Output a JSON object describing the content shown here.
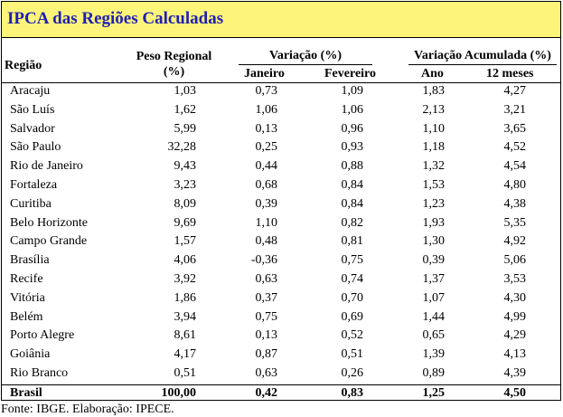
{
  "title": "IPCA das Regiões Calculadas",
  "headers": {
    "regiao": "Região",
    "peso_line1": "Peso Regional",
    "peso_line2": "(%)",
    "variacao": "Variação (%)",
    "janeiro": "Janeiro",
    "fevereiro": "Fevereiro",
    "variacao_acumulada": "Variação Acumulada (%)",
    "ano": "Ano",
    "meses12": "12 meses"
  },
  "rows": [
    {
      "regiao": "Aracaju",
      "peso": "1,03",
      "janeiro": "0,73",
      "fevereiro": "1,09",
      "ano": "1,83",
      "meses12": "4,27"
    },
    {
      "regiao": "São Luís",
      "peso": "1,62",
      "janeiro": "1,06",
      "fevereiro": "1,06",
      "ano": "2,13",
      "meses12": "3,21"
    },
    {
      "regiao": "Salvador",
      "peso": "5,99",
      "janeiro": "0,13",
      "fevereiro": "0,96",
      "ano": "1,10",
      "meses12": "3,65"
    },
    {
      "regiao": "São Paulo",
      "peso": "32,28",
      "janeiro": "0,25",
      "fevereiro": "0,93",
      "ano": "1,18",
      "meses12": "4,52"
    },
    {
      "regiao": "Rio de Janeiro",
      "peso": "9,43",
      "janeiro": "0,44",
      "fevereiro": "0,88",
      "ano": "1,32",
      "meses12": "4,54"
    },
    {
      "regiao": "Fortaleza",
      "peso": "3,23",
      "janeiro": "0,68",
      "fevereiro": "0,84",
      "ano": "1,53",
      "meses12": "4,80"
    },
    {
      "regiao": "Curitiba",
      "peso": "8,09",
      "janeiro": "0,39",
      "fevereiro": "0,84",
      "ano": "1,23",
      "meses12": "4,38"
    },
    {
      "regiao": "Belo Horizonte",
      "peso": "9,69",
      "janeiro": "1,10",
      "fevereiro": "0,82",
      "ano": "1,93",
      "meses12": "5,35"
    },
    {
      "regiao": "Campo Grande",
      "peso": "1,57",
      "janeiro": "0,48",
      "fevereiro": "0,81",
      "ano": "1,30",
      "meses12": "4,92"
    },
    {
      "regiao": "Brasília",
      "peso": "4,06",
      "janeiro": "-0,36",
      "fevereiro": "0,75",
      "ano": "0,39",
      "meses12": "5,06"
    },
    {
      "regiao": "Recife",
      "peso": "3,92",
      "janeiro": "0,63",
      "fevereiro": "0,74",
      "ano": "1,37",
      "meses12": "3,53"
    },
    {
      "regiao": "Vitória",
      "peso": "1,86",
      "janeiro": "0,37",
      "fevereiro": "0,70",
      "ano": "1,07",
      "meses12": "4,30"
    },
    {
      "regiao": "Belém",
      "peso": "3,94",
      "janeiro": "0,75",
      "fevereiro": "0,69",
      "ano": "1,44",
      "meses12": "4,99"
    },
    {
      "regiao": "Porto Alegre",
      "peso": "8,61",
      "janeiro": "0,13",
      "fevereiro": "0,52",
      "ano": "0,65",
      "meses12": "4,29"
    },
    {
      "regiao": "Goiânia",
      "peso": "4,17",
      "janeiro": "0,87",
      "fevereiro": "0,51",
      "ano": "1,39",
      "meses12": "4,13"
    },
    {
      "regiao": "Rio Branco",
      "peso": "0,51",
      "janeiro": "0,63",
      "fevereiro": "0,26",
      "ano": "0,89",
      "meses12": "4,39"
    }
  ],
  "total": {
    "regiao": "Brasil",
    "peso": "100,00",
    "janeiro": "0,42",
    "fevereiro": "0,83",
    "ano": "1,25",
    "meses12": "4,50"
  },
  "source": "Fonte: IBGE. Elaboração: IPECE.",
  "colors": {
    "title_bg": "#fcf57a",
    "title_text": "#1f1fb4"
  }
}
